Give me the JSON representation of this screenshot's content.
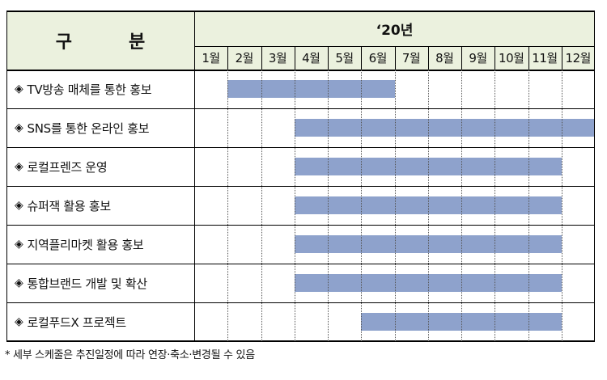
{
  "header": {
    "category_char1": "구",
    "category_char2": "분",
    "year": "‘20년",
    "months": [
      "1월",
      "2월",
      "3월",
      "4월",
      "5월",
      "6월",
      "7월",
      "8월",
      "9월",
      "10월",
      "11월",
      "12월"
    ]
  },
  "bullet_symbol": "◈",
  "rows": [
    {
      "label": "TV방송 매체를 통한 홍보",
      "start_month": 2,
      "end_month": 6
    },
    {
      "label": "SNS를 통한 온라인 홍보",
      "start_month": 4,
      "end_month": 12
    },
    {
      "label": "로컬프렌즈 운영",
      "start_month": 4,
      "end_month": 11
    },
    {
      "label": "슈퍼잭 활용 홍보",
      "start_month": 4,
      "end_month": 11
    },
    {
      "label": "지역플리마켓 활용 홍보",
      "start_month": 4,
      "end_month": 11
    },
    {
      "label": "통합브랜드 개발 및 확산",
      "start_month": 4,
      "end_month": 11
    },
    {
      "label": "로컬푸드X 프로젝트",
      "start_month": 6,
      "end_month": 11
    }
  ],
  "colors": {
    "header_bg": "#ebf1de",
    "bar": "#8ea2cc"
  },
  "footnote": "* 세부 스케줄은 추진일정에 따라 연장·축소·변경될 수 있음"
}
